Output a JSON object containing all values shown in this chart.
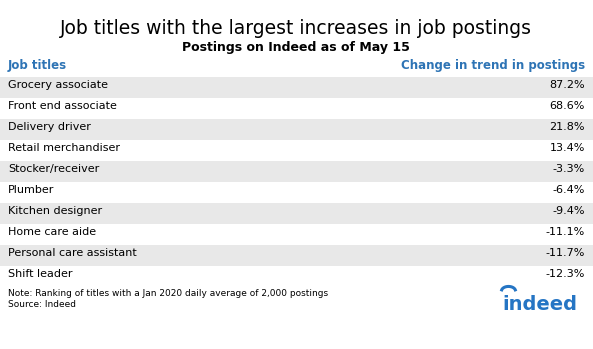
{
  "title": "Job titles with the largest increases in job postings",
  "subtitle": "Postings on Indeed as of May 15",
  "col_header_left": "Job titles",
  "col_header_right": "Change in trend in postings",
  "rows": [
    {
      "job": "Grocery associate",
      "value": "87.2%"
    },
    {
      "job": "Front end associate",
      "value": "68.6%"
    },
    {
      "job": "Delivery driver",
      "value": "21.8%"
    },
    {
      "job": "Retail merchandiser",
      "value": "13.4%"
    },
    {
      "job": "Stocker/receiver",
      "value": "-3.3%"
    },
    {
      "job": "Plumber",
      "value": "-6.4%"
    },
    {
      "job": "Kitchen designer",
      "value": "-9.4%"
    },
    {
      "job": "Home care aide",
      "value": "-11.1%"
    },
    {
      "job": "Personal care assistant",
      "value": "-11.7%"
    },
    {
      "job": "Shift leader",
      "value": "-12.3%"
    }
  ],
  "note": "Note: Ranking of titles with a Jan 2020 daily average of 2,000 postings",
  "source": "Source: Indeed",
  "header_color": "#2E74B5",
  "row_shaded_color": "#E8E8E8",
  "row_white_color": "#FFFFFF",
  "text_color": "#000000",
  "title_fontsize": 13.5,
  "subtitle_fontsize": 9,
  "header_fontsize": 8.5,
  "row_fontsize": 8,
  "note_fontsize": 6.5,
  "background_color": "#FFFFFF",
  "indeed_color": "#2575C4"
}
